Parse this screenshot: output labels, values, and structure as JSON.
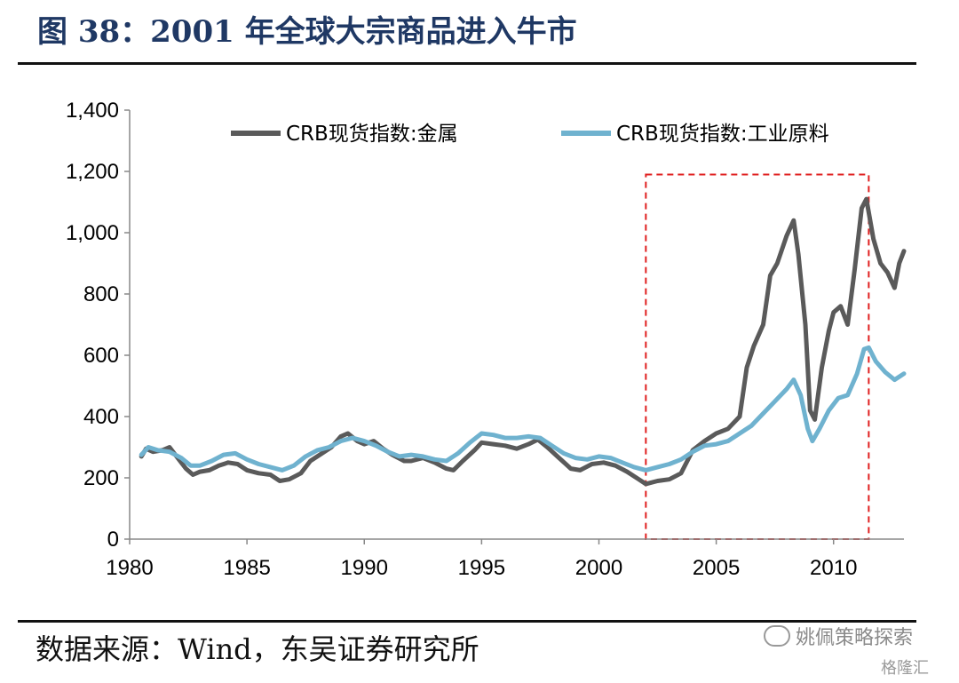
{
  "header": {
    "title": "图 38：2001 年全球大宗商品进入牛市"
  },
  "footer": {
    "source": "数据来源：Wind，东吴证券研究所"
  },
  "watermark": {
    "text": "姚佩策略探索",
    "sub": "格隆汇"
  },
  "colors": {
    "metals": "#5a5a5a",
    "industrial": "#6fb2cf",
    "highlight_box": "#e02020",
    "title": "#1f3864"
  },
  "chart_data": {
    "type": "line",
    "title": "",
    "xlabel": "",
    "ylabel": "",
    "xlim": [
      1980,
      2013
    ],
    "ylim": [
      0,
      1400
    ],
    "xticks": [
      1980,
      1985,
      1990,
      1995,
      2000,
      2005,
      2010
    ],
    "yticks": [
      0,
      200,
      400,
      600,
      800,
      1000,
      1200,
      1400
    ],
    "ytick_labels": [
      "0",
      "200",
      "400",
      "600",
      "800",
      "1,000",
      "1,200",
      "1,400"
    ],
    "grid": false,
    "legend_position": "top",
    "highlight_range": {
      "x": [
        2002,
        2011.5
      ],
      "y": [
        0,
        1190
      ]
    },
    "series": [
      {
        "name": "CRB现货指数:金属",
        "color": "#5a5a5a",
        "points": [
          [
            1980.5,
            270
          ],
          [
            1980.7,
            295
          ],
          [
            1981.0,
            285
          ],
          [
            1981.4,
            290
          ],
          [
            1981.7,
            300
          ],
          [
            1982.0,
            270
          ],
          [
            1982.4,
            230
          ],
          [
            1982.7,
            210
          ],
          [
            1983.0,
            220
          ],
          [
            1983.4,
            225
          ],
          [
            1983.8,
            240
          ],
          [
            1984.2,
            250
          ],
          [
            1984.6,
            245
          ],
          [
            1985.0,
            225
          ],
          [
            1985.5,
            215
          ],
          [
            1986.0,
            210
          ],
          [
            1986.4,
            190
          ],
          [
            1986.8,
            195
          ],
          [
            1987.3,
            215
          ],
          [
            1987.7,
            255
          ],
          [
            1988.2,
            280
          ],
          [
            1988.6,
            300
          ],
          [
            1989.0,
            335
          ],
          [
            1989.3,
            345
          ],
          [
            1989.7,
            320
          ],
          [
            1990.0,
            310
          ],
          [
            1990.4,
            320
          ],
          [
            1990.8,
            295
          ],
          [
            1991.2,
            275
          ],
          [
            1991.7,
            255
          ],
          [
            1992.0,
            255
          ],
          [
            1992.5,
            265
          ],
          [
            1993.0,
            250
          ],
          [
            1993.5,
            230
          ],
          [
            1993.8,
            225
          ],
          [
            1994.2,
            255
          ],
          [
            1994.7,
            290
          ],
          [
            1995.0,
            315
          ],
          [
            1995.5,
            310
          ],
          [
            1996.0,
            305
          ],
          [
            1996.5,
            295
          ],
          [
            1997.0,
            310
          ],
          [
            1997.4,
            325
          ],
          [
            1997.8,
            300
          ],
          [
            1998.3,
            265
          ],
          [
            1998.8,
            230
          ],
          [
            1999.2,
            225
          ],
          [
            1999.7,
            245
          ],
          [
            2000.2,
            250
          ],
          [
            2000.7,
            240
          ],
          [
            2001.2,
            220
          ],
          [
            2001.7,
            195
          ],
          [
            2002.0,
            180
          ],
          [
            2002.5,
            190
          ],
          [
            2003.0,
            195
          ],
          [
            2003.5,
            215
          ],
          [
            2004.0,
            290
          ],
          [
            2004.5,
            320
          ],
          [
            2005.0,
            345
          ],
          [
            2005.5,
            360
          ],
          [
            2006.0,
            400
          ],
          [
            2006.3,
            560
          ],
          [
            2006.6,
            630
          ],
          [
            2007.0,
            700
          ],
          [
            2007.3,
            860
          ],
          [
            2007.6,
            900
          ],
          [
            2008.0,
            990
          ],
          [
            2008.3,
            1040
          ],
          [
            2008.5,
            930
          ],
          [
            2008.8,
            700
          ],
          [
            2009.0,
            420
          ],
          [
            2009.2,
            390
          ],
          [
            2009.5,
            560
          ],
          [
            2009.8,
            680
          ],
          [
            2010.0,
            740
          ],
          [
            2010.3,
            760
          ],
          [
            2010.6,
            700
          ],
          [
            2010.9,
            880
          ],
          [
            2011.2,
            1080
          ],
          [
            2011.4,
            1110
          ],
          [
            2011.7,
            980
          ],
          [
            2012.0,
            900
          ],
          [
            2012.3,
            870
          ],
          [
            2012.6,
            820
          ],
          [
            2012.8,
            900
          ],
          [
            2013.0,
            940
          ]
        ]
      },
      {
        "name": "CRB现货指数:工业原料",
        "color": "#6fb2cf",
        "points": [
          [
            1980.5,
            275
          ],
          [
            1980.8,
            300
          ],
          [
            1981.2,
            290
          ],
          [
            1981.7,
            285
          ],
          [
            1982.2,
            265
          ],
          [
            1982.6,
            240
          ],
          [
            1983.0,
            240
          ],
          [
            1983.5,
            255
          ],
          [
            1984.0,
            275
          ],
          [
            1984.5,
            280
          ],
          [
            1985.0,
            260
          ],
          [
            1985.5,
            245
          ],
          [
            1986.0,
            235
          ],
          [
            1986.5,
            225
          ],
          [
            1987.0,
            240
          ],
          [
            1987.5,
            270
          ],
          [
            1988.0,
            290
          ],
          [
            1988.5,
            300
          ],
          [
            1989.0,
            320
          ],
          [
            1989.5,
            330
          ],
          [
            1990.0,
            320
          ],
          [
            1990.5,
            305
          ],
          [
            1991.0,
            285
          ],
          [
            1991.5,
            270
          ],
          [
            1992.0,
            275
          ],
          [
            1992.5,
            270
          ],
          [
            1993.0,
            260
          ],
          [
            1993.5,
            255
          ],
          [
            1994.0,
            280
          ],
          [
            1994.5,
            315
          ],
          [
            1995.0,
            345
          ],
          [
            1995.5,
            340
          ],
          [
            1996.0,
            330
          ],
          [
            1996.5,
            330
          ],
          [
            1997.0,
            335
          ],
          [
            1997.5,
            330
          ],
          [
            1998.0,
            305
          ],
          [
            1998.5,
            280
          ],
          [
            1999.0,
            265
          ],
          [
            1999.5,
            260
          ],
          [
            2000.0,
            270
          ],
          [
            2000.5,
            265
          ],
          [
            2001.0,
            250
          ],
          [
            2001.5,
            235
          ],
          [
            2002.0,
            225
          ],
          [
            2002.5,
            235
          ],
          [
            2003.0,
            245
          ],
          [
            2003.5,
            260
          ],
          [
            2004.0,
            285
          ],
          [
            2004.5,
            305
          ],
          [
            2005.0,
            310
          ],
          [
            2005.5,
            320
          ],
          [
            2006.0,
            345
          ],
          [
            2006.5,
            370
          ],
          [
            2007.0,
            410
          ],
          [
            2007.5,
            450
          ],
          [
            2008.0,
            490
          ],
          [
            2008.3,
            520
          ],
          [
            2008.6,
            470
          ],
          [
            2008.9,
            360
          ],
          [
            2009.1,
            320
          ],
          [
            2009.4,
            360
          ],
          [
            2009.8,
            420
          ],
          [
            2010.2,
            460
          ],
          [
            2010.6,
            470
          ],
          [
            2011.0,
            540
          ],
          [
            2011.3,
            620
          ],
          [
            2011.5,
            625
          ],
          [
            2011.8,
            580
          ],
          [
            2012.2,
            545
          ],
          [
            2012.6,
            520
          ],
          [
            2013.0,
            540
          ]
        ]
      }
    ]
  }
}
